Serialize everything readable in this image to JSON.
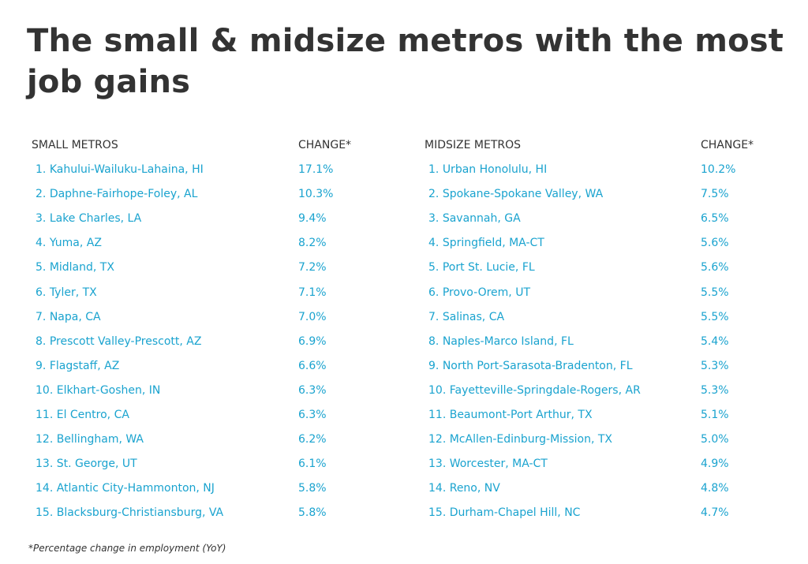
{
  "title": "The small & midsize metros with the most job gains",
  "chart_data": [
    {
      "type": "table",
      "name_header": "SMALL METROS",
      "value_header": "CHANGE*",
      "rows": [
        {
          "rank": "1.",
          "metro": "Kahului-Wailuku-Lahaina, HI",
          "change": "17.1%"
        },
        {
          "rank": "2.",
          "metro": "Daphne-Fairhope-Foley, AL",
          "change": "10.3%"
        },
        {
          "rank": "3.",
          "metro": "Lake Charles, LA",
          "change": "9.4%"
        },
        {
          "rank": "4.",
          "metro": "Yuma, AZ",
          "change": "8.2%"
        },
        {
          "rank": "5.",
          "metro": "Midland, TX",
          "change": "7.2%"
        },
        {
          "rank": "6.",
          "metro": "Tyler, TX",
          "change": "7.1%"
        },
        {
          "rank": "7.",
          "metro": "Napa, CA",
          "change": "7.0%"
        },
        {
          "rank": "8.",
          "metro": "Prescott Valley-Prescott, AZ",
          "change": "6.9%"
        },
        {
          "rank": "9.",
          "metro": "Flagstaff, AZ",
          "change": "6.6%"
        },
        {
          "rank": "10.",
          "metro": "Elkhart-Goshen, IN",
          "change": "6.3%"
        },
        {
          "rank": "11.",
          "metro": "El Centro, CA",
          "change": "6.3%"
        },
        {
          "rank": "12.",
          "metro": "Bellingham, WA",
          "change": "6.2%"
        },
        {
          "rank": "13.",
          "metro": "St. George, UT",
          "change": "6.1%"
        },
        {
          "rank": "14.",
          "metro": "Atlantic City-Hammonton, NJ",
          "change": "5.8%"
        },
        {
          "rank": "15.",
          "metro": "Blacksburg-Christiansburg, VA",
          "change": "5.8%"
        }
      ]
    },
    {
      "type": "table",
      "name_header": "MIDSIZE METROS",
      "value_header": "CHANGE*",
      "rows": [
        {
          "rank": "1.",
          "metro": "Urban Honolulu, HI",
          "change": "10.2%"
        },
        {
          "rank": "2.",
          "metro": "Spokane-Spokane Valley, WA",
          "change": "7.5%"
        },
        {
          "rank": "3.",
          "metro": "Savannah, GA",
          "change": "6.5%"
        },
        {
          "rank": "4.",
          "metro": "Springfield, MA-CT",
          "change": "5.6%"
        },
        {
          "rank": "5.",
          "metro": "Port St. Lucie, FL",
          "change": "5.6%"
        },
        {
          "rank": "6.",
          "metro": "Provo-Orem, UT",
          "change": "5.5%"
        },
        {
          "rank": "7.",
          "metro": "Salinas, CA",
          "change": "5.5%"
        },
        {
          "rank": "8.",
          "metro": "Naples-Marco Island, FL",
          "change": "5.4%"
        },
        {
          "rank": "9.",
          "metro": "North Port-Sarasota-Bradenton, FL",
          "change": "5.3%"
        },
        {
          "rank": "10.",
          "metro": "Fayetteville-Springdale-Rogers, AR",
          "change": "5.3%"
        },
        {
          "rank": "11.",
          "metro": "Beaumont-Port Arthur, TX",
          "change": "5.1%"
        },
        {
          "rank": "12.",
          "metro": "McAllen-Edinburg-Mission, TX",
          "change": "5.0%"
        },
        {
          "rank": "13.",
          "metro": "Worcester, MA-CT",
          "change": "4.9%"
        },
        {
          "rank": "14.",
          "metro": "Reno, NV",
          "change": "4.8%"
        },
        {
          "rank": "15.",
          "metro": "Durham-Chapel Hill, NC",
          "change": "4.7%"
        }
      ]
    }
  ],
  "footnote": "*Percentage change in employment (YoY)",
  "colors": {
    "title": "#333333",
    "header": "#333333",
    "row_text": "#1aa3cf"
  }
}
